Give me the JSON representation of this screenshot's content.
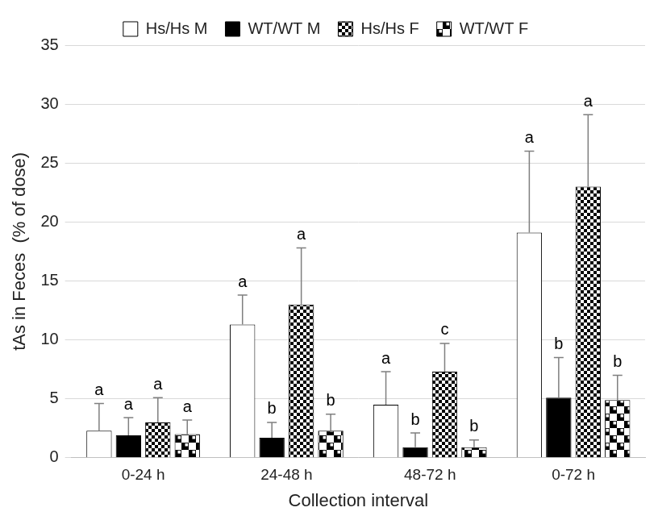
{
  "chart_data": {
    "type": "bar",
    "x_label": "Collection interval",
    "y_label": "tAs in Feces  (% of dose)",
    "categories": [
      "0-24 h",
      "24-48 h",
      "48-72 h",
      "0-72 h"
    ],
    "series": [
      {
        "name": "Hs/Hs M",
        "color": "#ffffff",
        "values": [
          2.3,
          11.3,
          4.5,
          19.1
        ],
        "errors": [
          2.3,
          2.5,
          2.8,
          6.9
        ],
        "letters": [
          "a",
          "a",
          "a",
          "a"
        ]
      },
      {
        "name": "WT/WT M",
        "color": "#000000",
        "values": [
          1.9,
          1.7,
          0.9,
          5.1
        ],
        "errors": [
          1.5,
          1.3,
          1.2,
          3.4
        ],
        "letters": [
          "a",
          "b",
          "b",
          "b"
        ]
      },
      {
        "name": "Hs/Hs F",
        "color": "#000000",
        "values": [
          3.0,
          13.0,
          7.3,
          23.0
        ],
        "errors": [
          2.1,
          4.8,
          2.4,
          6.1
        ],
        "letters": [
          "a",
          "a",
          "c",
          "a"
        ]
      },
      {
        "name": "WT/WT F",
        "color": "#000000",
        "values": [
          2.0,
          2.3,
          0.9,
          4.9
        ],
        "errors": [
          1.2,
          1.4,
          0.6,
          2.1
        ],
        "letters": [
          "a",
          "b",
          "b",
          "b"
        ]
      }
    ],
    "ylim": [
      0,
      35
    ],
    "yticks": [
      0,
      5,
      10,
      15,
      20,
      25,
      30,
      35
    ],
    "grid": true,
    "legend": "top"
  }
}
